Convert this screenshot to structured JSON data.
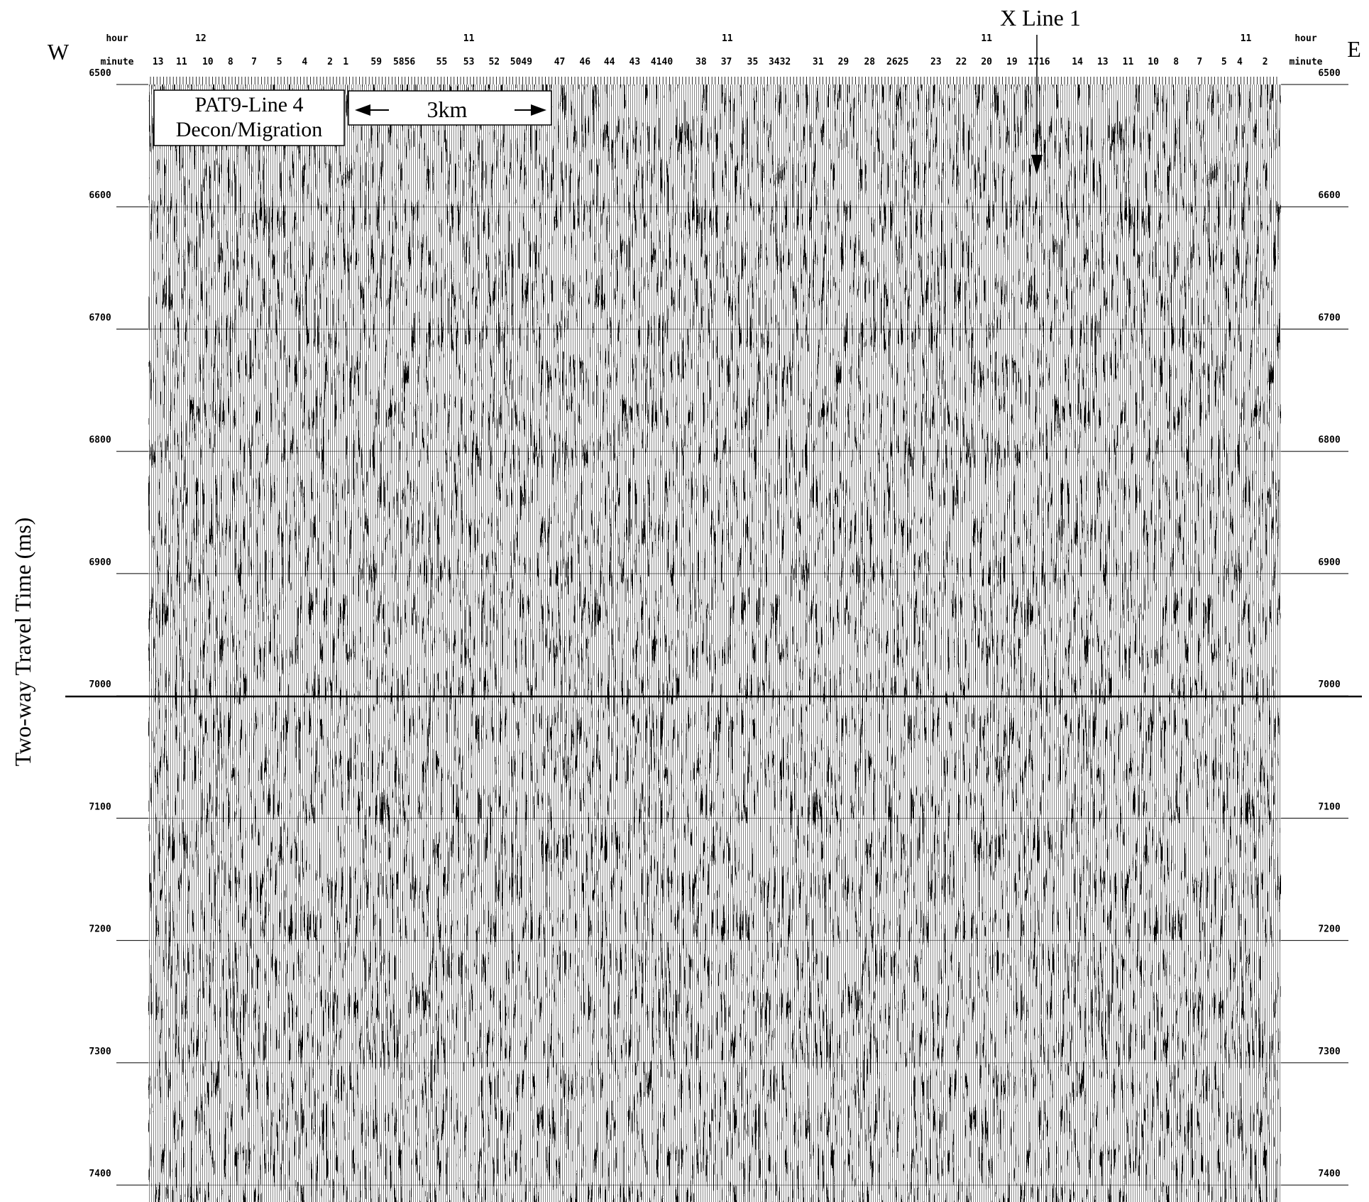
{
  "header": {
    "west": "W",
    "east": "E",
    "x_line_label": "X Line 1"
  },
  "top_axis": {
    "hour_label": "hour",
    "minute_label": "minute",
    "hours": [
      "12",
      "11",
      "11",
      "11",
      "11"
    ],
    "minutes": [
      "13",
      "11",
      "10",
      "8",
      "7",
      "5",
      "4",
      "2",
      "1",
      "59",
      "5856",
      "55",
      "53",
      "52",
      "5049",
      "47",
      "46",
      "44",
      "43",
      "4140",
      "38",
      "37",
      "35",
      "3432",
      "31",
      "29",
      "28",
      "2625",
      "23",
      "22",
      "20",
      "19",
      "1716",
      "14",
      "13",
      "11",
      "10",
      "8",
      "7",
      "5",
      "4",
      "2"
    ]
  },
  "title_box": {
    "line1": "PAT9-Line 4",
    "line2": "Decon/Migration"
  },
  "scale_bar": {
    "label": "3km"
  },
  "y_axis": {
    "title": "Two-way Travel Time (ms)",
    "ticks": [
      "6500",
      "6600",
      "6700",
      "6800",
      "6900",
      "7000",
      "7100",
      "7200",
      "7300",
      "7400"
    ]
  }
}
